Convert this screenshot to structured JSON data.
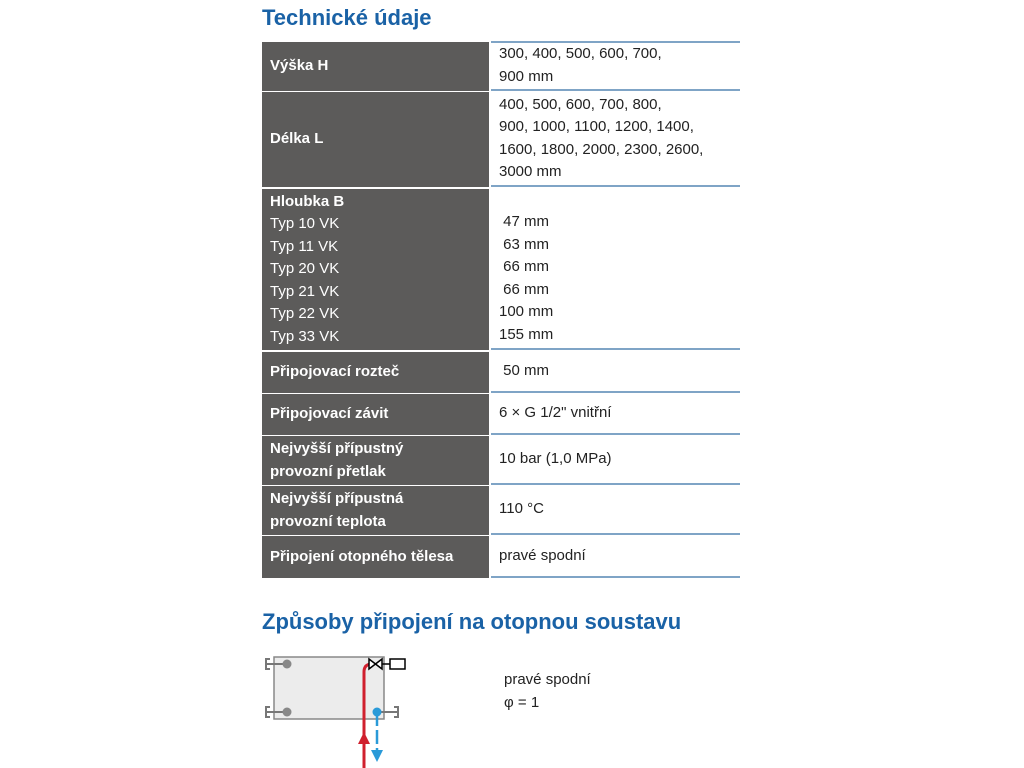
{
  "title": "Technické údaje",
  "rows": [
    {
      "label": "Výška H",
      "value_lines": [
        "300, 400, 500, 600, 700,",
        "900 mm"
      ]
    },
    {
      "label": "Délka L",
      "value_lines": [
        "400, 500, 600, 700, 800,",
        "900, 1000, 1100, 1200, 1400,",
        "1600, 1800, 2000, 2300, 2600,",
        "3000 mm"
      ]
    },
    {
      "label": "Hloubka B",
      "sub_labels": [
        "Typ 10 VK",
        "Typ 11 VK",
        "Typ 20 VK",
        "Typ 21 VK",
        "Typ 22 VK",
        "Typ 33 VK"
      ],
      "value_lines": [
        " 47 mm",
        " 63 mm",
        " 66 mm",
        " 66 mm",
        "100 mm",
        "155 mm"
      ]
    },
    {
      "label": "Připojovací rozteč",
      "value_lines": [
        " 50 mm"
      ]
    },
    {
      "label": "Připojovací závit",
      "value_lines": [
        "6 × G 1/2\" vnitřní"
      ]
    },
    {
      "label_lines": [
        "Nejvyšší přípustný",
        "provozní přetlak"
      ],
      "value_lines": [
        "10 bar (1,0 MPa)"
      ]
    },
    {
      "label_lines": [
        "Nejvyšší přípustná",
        "provozní teplota"
      ],
      "value_lines": [
        "110 °C"
      ]
    },
    {
      "label": "Připojení otopného tělesa",
      "value_lines": [
        "pravé spodní"
      ]
    }
  ],
  "connection": {
    "title": "Způsoby připojení na otopnou soustavu",
    "type": "pravé spodní",
    "factor": "φ = 1",
    "colors": {
      "supply": "#d0202e",
      "return": "#2a9ad8",
      "body": "#ececec"
    }
  }
}
